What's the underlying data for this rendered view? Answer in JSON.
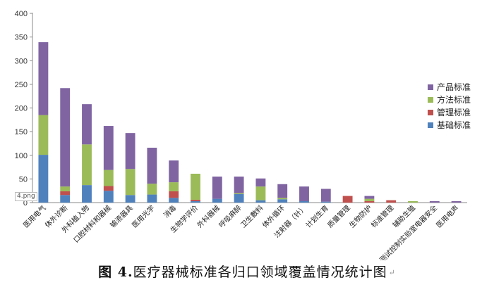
{
  "chart_data": {
    "type": "bar",
    "stacked": true,
    "ylim": [
      0,
      400
    ],
    "yticks": [
      0,
      50,
      100,
      150,
      200,
      250,
      300,
      350,
      400
    ],
    "legend_position": "right",
    "grid": false,
    "categories": [
      "医用电气",
      "体外诊断",
      "外科植入物",
      "口腔材料和器械",
      "输液器具",
      "医用光学",
      "消毒",
      "生物学评价",
      "外科器械",
      "呼吸麻醉",
      "卫生敷料",
      "体外循环",
      "注射器（针）",
      "计划生育",
      "质量管理",
      "生物防护",
      "标准管理",
      "辅助生殖",
      "测试控制实验室电器安全",
      "医用电声"
    ],
    "series": [
      {
        "name": "基础标准",
        "color": "#4f81bd",
        "values": [
          101,
          16,
          37,
          25,
          16,
          17,
          10,
          3,
          8,
          18,
          5,
          7,
          3,
          2,
          0,
          0,
          0,
          0,
          0,
          0
        ]
      },
      {
        "name": "管理标准",
        "color": "#c0504d",
        "values": [
          0,
          8,
          0,
          10,
          0,
          0,
          14,
          3,
          0,
          0,
          0,
          0,
          0,
          0,
          14,
          3,
          5,
          0,
          0,
          0
        ]
      },
      {
        "name": "方法标准",
        "color": "#9bbb59",
        "values": [
          84,
          10,
          86,
          34,
          55,
          23,
          19,
          55,
          0,
          2,
          29,
          3,
          0,
          0,
          0,
          5,
          0,
          3,
          0,
          0
        ]
      },
      {
        "name": "产品标准",
        "color": "#8064a2",
        "values": [
          154,
          208,
          85,
          93,
          76,
          76,
          46,
          0,
          47,
          35,
          17,
          29,
          31,
          27,
          0,
          6,
          0,
          0,
          3,
          3
        ]
      }
    ]
  },
  "caption": {
    "bold": "图 4.",
    "rest": "医疗器械标准各归口领域覆盖情况统计图",
    "mark": "↵"
  },
  "image_tag": "4.png"
}
